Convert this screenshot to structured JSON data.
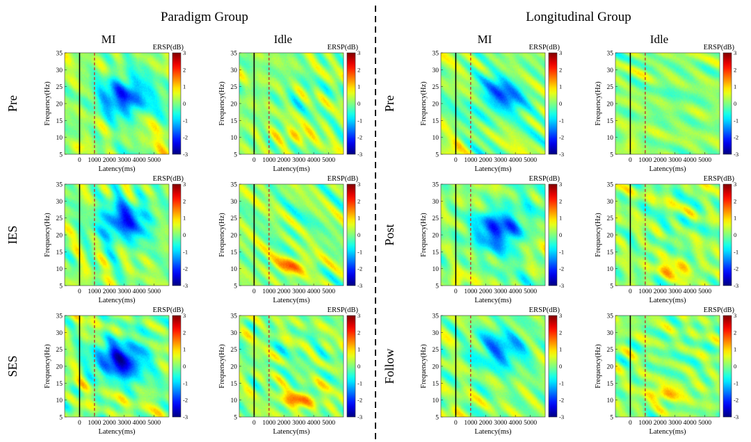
{
  "groups": [
    {
      "title": "Paradigm Group",
      "conditions": [
        "MI",
        "Idle"
      ],
      "rows": [
        "Pre",
        "IES",
        "SES"
      ]
    },
    {
      "title": "Longitudinal Group",
      "conditions": [
        "MI",
        "Idle"
      ],
      "rows": [
        "Pre",
        "Post",
        "Follow"
      ]
    }
  ],
  "colors": {
    "divider": "#111111",
    "onset_line": "#000000",
    "marker_line": "#c0392b",
    "colormap": [
      "#00008f",
      "#0000ff",
      "#00ffff",
      "#ffff00",
      "#ff0000",
      "#800000"
    ]
  },
  "chart_data": {
    "type": "heatmap",
    "description_of_panels": "ERSP time-frequency maps, 12 panels (2 groups x 3 sessions x 2 conditions)",
    "xlabel": "Latency(ms)",
    "ylabel": "Frequency(Hz)",
    "x_ticks": [
      0,
      1000,
      2000,
      3000,
      4000,
      5000
    ],
    "y_ticks": [
      5,
      10,
      15,
      20,
      25,
      30,
      35
    ],
    "xlim": [
      -1000,
      6000
    ],
    "ylim": [
      5,
      35
    ],
    "onset_line_x": 0,
    "marker_line_x": 1000,
    "colorbar": {
      "label": "ERSP(dB)",
      "ticks": [
        3,
        2,
        1,
        0,
        -1,
        -2,
        -3
      ],
      "range": [
        -3,
        3
      ]
    },
    "panels": [
      {
        "group": "Paradigm Group",
        "session": "Pre",
        "condition": "MI",
        "desync": {
          "center_ms": 3000,
          "center_hz": 22,
          "depth_db": -2.0
        },
        "sync": {
          "center_ms": 0,
          "center_hz": 7,
          "amp_db": 0.8
        }
      },
      {
        "group": "Paradigm Group",
        "session": "Pre",
        "condition": "Idle",
        "desync": {
          "center_ms": 3000,
          "center_hz": 22,
          "depth_db": -0.2
        },
        "sync": {
          "center_ms": 2800,
          "center_hz": 11,
          "amp_db": 0.7
        }
      },
      {
        "group": "Paradigm Group",
        "session": "IES",
        "condition": "MI",
        "desync": {
          "center_ms": 3000,
          "center_hz": 24,
          "depth_db": -2.0
        },
        "sync": {
          "center_ms": 0,
          "center_hz": 7,
          "amp_db": 0.6
        }
      },
      {
        "group": "Paradigm Group",
        "session": "IES",
        "condition": "Idle",
        "desync": {
          "center_ms": 3000,
          "center_hz": 24,
          "depth_db": -0.2
        },
        "sync": {
          "center_ms": 2600,
          "center_hz": 11,
          "amp_db": 1.2
        }
      },
      {
        "group": "Paradigm Group",
        "session": "SES",
        "condition": "MI",
        "desync": {
          "center_ms": 2800,
          "center_hz": 22,
          "depth_db": -2.4
        },
        "sync": {
          "center_ms": 0,
          "center_hz": 7,
          "amp_db": 0.6
        }
      },
      {
        "group": "Paradigm Group",
        "session": "SES",
        "condition": "Idle",
        "desync": {
          "center_ms": 3000,
          "center_hz": 22,
          "depth_db": -0.2
        },
        "sync": {
          "center_ms": 3000,
          "center_hz": 10,
          "amp_db": 1.2
        }
      },
      {
        "group": "Longitudinal Group",
        "session": "Pre",
        "condition": "MI",
        "desync": {
          "center_ms": 3000,
          "center_hz": 22,
          "depth_db": -1.6
        },
        "sync": {
          "center_ms": 0,
          "center_hz": 7,
          "amp_db": 0.6
        }
      },
      {
        "group": "Longitudinal Group",
        "session": "Pre",
        "condition": "Idle",
        "desync": {
          "center_ms": 3000,
          "center_hz": 22,
          "depth_db": -0.2
        },
        "sync": {
          "center_ms": 0,
          "center_hz": 8,
          "amp_db": 0.6
        }
      },
      {
        "group": "Longitudinal Group",
        "session": "Post",
        "condition": "MI",
        "desync": {
          "center_ms": 3000,
          "center_hz": 22,
          "depth_db": -2.2
        },
        "sync": {
          "center_ms": 0,
          "center_hz": 6,
          "amp_db": 0.8
        }
      },
      {
        "group": "Longitudinal Group",
        "session": "Post",
        "condition": "Idle",
        "desync": {
          "center_ms": 3000,
          "center_hz": 22,
          "depth_db": -0.2
        },
        "sync": {
          "center_ms": 3000,
          "center_hz": 10,
          "amp_db": 0.9
        }
      },
      {
        "group": "Longitudinal Group",
        "session": "Follow",
        "condition": "MI",
        "desync": {
          "center_ms": 3000,
          "center_hz": 25,
          "depth_db": -1.5
        },
        "sync": {
          "center_ms": 0,
          "center_hz": 7,
          "amp_db": 0.6
        }
      },
      {
        "group": "Longitudinal Group",
        "session": "Follow",
        "condition": "Idle",
        "desync": {
          "center_ms": 3000,
          "center_hz": 22,
          "depth_db": -0.2
        },
        "sync": {
          "center_ms": 2400,
          "center_hz": 12,
          "amp_db": 1.0
        }
      }
    ]
  }
}
